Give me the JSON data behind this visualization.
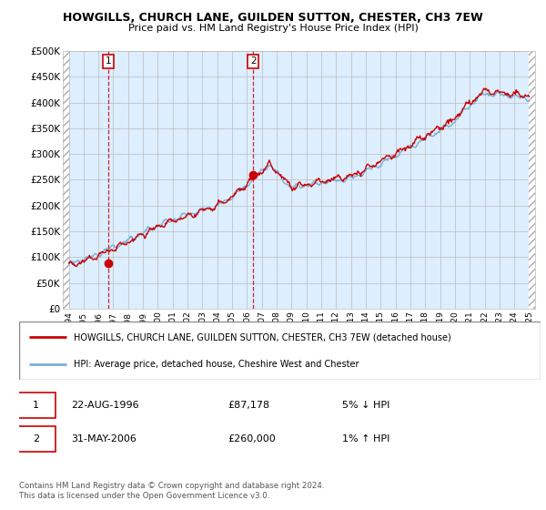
{
  "title": "HOWGILLS, CHURCH LANE, GUILDEN SUTTON, CHESTER, CH3 7EW",
  "subtitle": "Price paid vs. HM Land Registry's House Price Index (HPI)",
  "ylim": [
    0,
    500000
  ],
  "yticks": [
    0,
    50000,
    100000,
    150000,
    200000,
    250000,
    300000,
    350000,
    400000,
    450000,
    500000
  ],
  "ytick_labels": [
    "£0",
    "£50K",
    "£100K",
    "£150K",
    "£200K",
    "£250K",
    "£300K",
    "£350K",
    "£400K",
    "£450K",
    "£500K"
  ],
  "xlim_start": 1993.6,
  "xlim_end": 2025.4,
  "hpi_color": "#7ab0d4",
  "price_color": "#cc0000",
  "bg_color": "#ddeeff",
  "grid_color": "#bbbbbb",
  "sale1_year": 1996.65,
  "sale1_price": 87178,
  "sale1_label": "1",
  "sale2_year": 2006.42,
  "sale2_price": 260000,
  "sale2_label": "2",
  "legend_line1": "HOWGILLS, CHURCH LANE, GUILDEN SUTTON, CHESTER, CH3 7EW (detached house)",
  "legend_line2": "HPI: Average price, detached house, Cheshire West and Chester",
  "table_row1": [
    "1",
    "22-AUG-1996",
    "£87,178",
    "5% ↓ HPI"
  ],
  "table_row2": [
    "2",
    "31-MAY-2006",
    "£260,000",
    "1% ↑ HPI"
  ],
  "footnote": "Contains HM Land Registry data © Crown copyright and database right 2024.\nThis data is licensed under the Open Government Licence v3.0.",
  "hatch_left_end": 1994.0,
  "hatch_right_start": 2025.0
}
